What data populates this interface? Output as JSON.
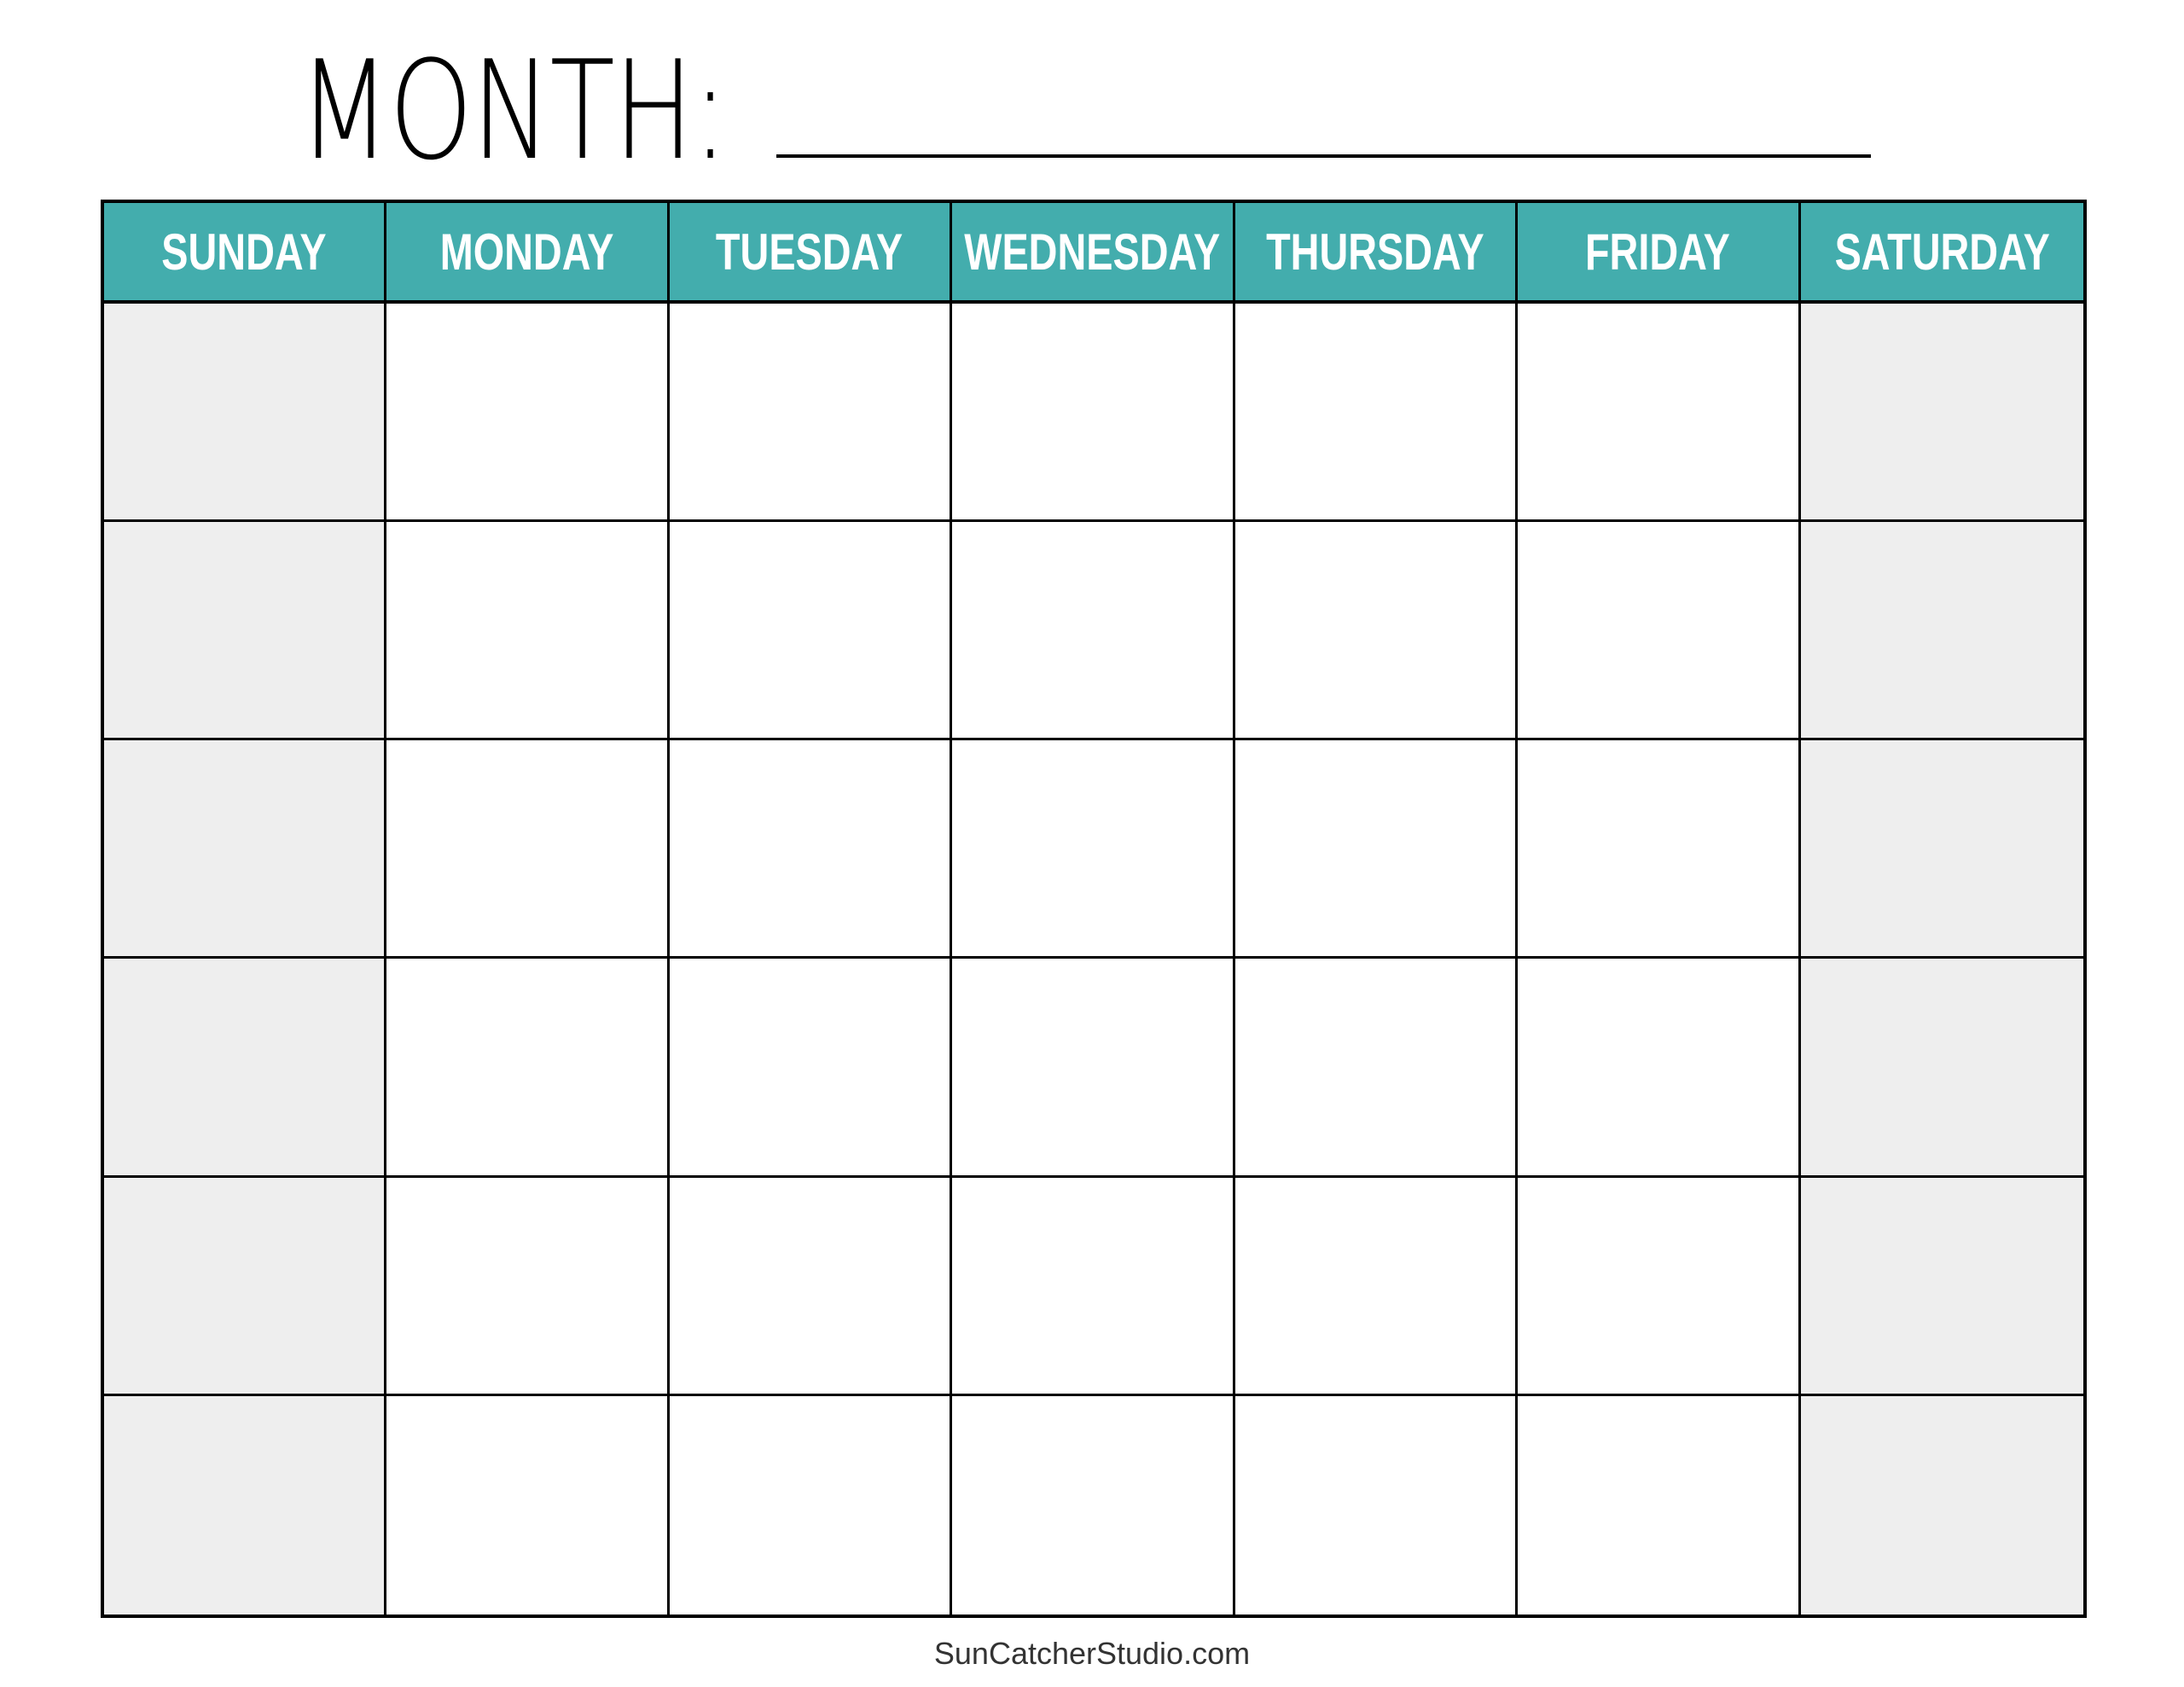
{
  "header": {
    "title": "MONTH:"
  },
  "calendar": {
    "days": [
      "SUNDAY",
      "MONDAY",
      "TUESDAY",
      "WEDNESDAY",
      "THURSDAY",
      "FRIDAY",
      "SATURDAY"
    ],
    "weeks": 6,
    "header_color": "#43adad",
    "weekend_color": "#eeeeee"
  },
  "footer": {
    "text": "SunCatcherStudio.com"
  }
}
